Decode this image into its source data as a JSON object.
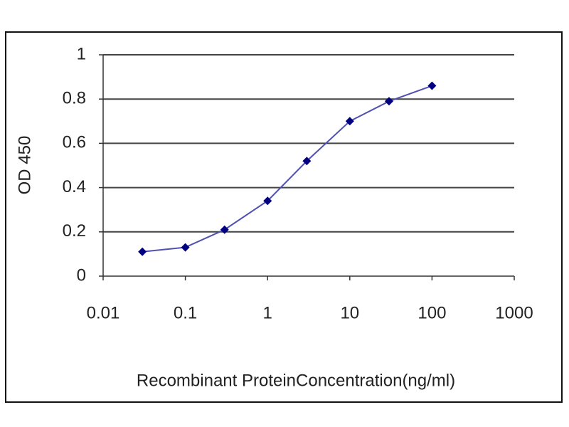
{
  "chart_data": {
    "type": "line",
    "xlabel": "Recombinant ProteinConcentration(ng/ml)",
    "ylabel": "OD 450",
    "x": [
      0.03,
      0.1,
      0.3,
      1,
      3,
      10,
      30,
      100
    ],
    "series": [
      {
        "name": "OD 450",
        "color": "#5050b0",
        "marker_color": "#000080",
        "values": [
          0.11,
          0.13,
          0.21,
          0.34,
          0.52,
          0.7,
          0.79,
          0.86
        ]
      }
    ],
    "xlim": [
      0.01,
      1000
    ],
    "xticks": [
      0.01,
      0.1,
      1,
      10,
      100,
      1000
    ],
    "xscale": "log",
    "ylim": [
      0,
      1
    ],
    "yticks": [
      0,
      0.2,
      0.4,
      0.6,
      0.8,
      1
    ],
    "grid": true
  }
}
